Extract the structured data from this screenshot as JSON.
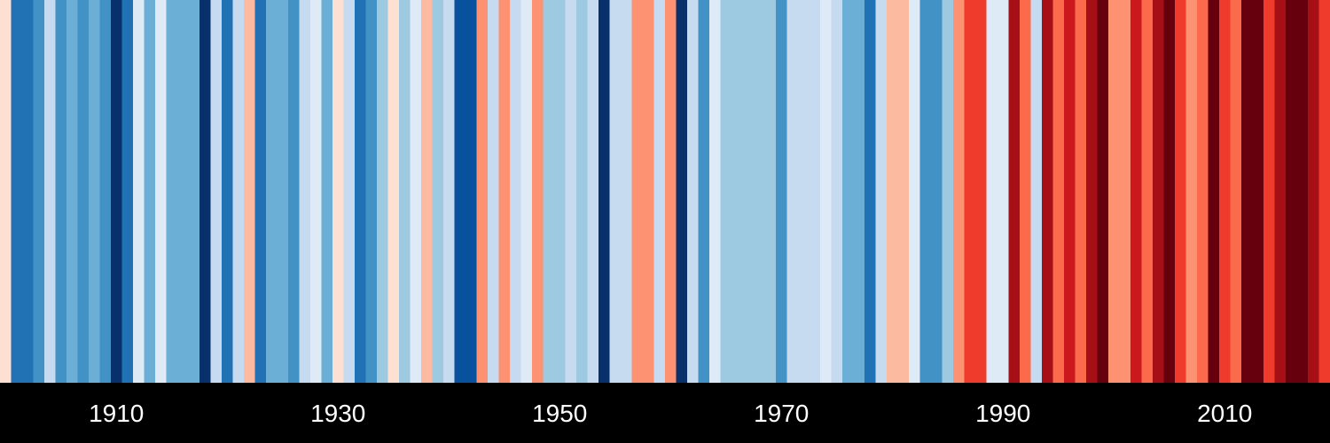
{
  "chart_data": {
    "type": "heatmap",
    "title": "",
    "xlabel": "",
    "ylabel": "",
    "x_tick_labels": [
      "1910",
      "1930",
      "1950",
      "1970",
      "1990",
      "2010"
    ],
    "x_ticks": [
      1910,
      1930,
      1950,
      1970,
      1990,
      2010
    ],
    "xlim": [
      1900,
      2020
    ],
    "grid": false,
    "legend": "none",
    "stripes": [
      {
        "x": 1900,
        "color": "#fee0d2"
      },
      {
        "x": 1901,
        "color": "#2171b5"
      },
      {
        "x": 1902,
        "color": "#2171b5"
      },
      {
        "x": 1903,
        "color": "#4292c6"
      },
      {
        "x": 1904,
        "color": "#c6dbef"
      },
      {
        "x": 1905,
        "color": "#4292c6"
      },
      {
        "x": 1906,
        "color": "#6baed6"
      },
      {
        "x": 1907,
        "color": "#4292c6"
      },
      {
        "x": 1908,
        "color": "#6baed6"
      },
      {
        "x": 1909,
        "color": "#4292c6"
      },
      {
        "x": 1910,
        "color": "#08306b"
      },
      {
        "x": 1911,
        "color": "#2171b5"
      },
      {
        "x": 1912,
        "color": "#deebf7"
      },
      {
        "x": 1913,
        "color": "#6baed6"
      },
      {
        "x": 1914,
        "color": "#deebf7"
      },
      {
        "x": 1915,
        "color": "#6baed6"
      },
      {
        "x": 1916,
        "color": "#6baed6"
      },
      {
        "x": 1917,
        "color": "#6baed6"
      },
      {
        "x": 1918,
        "color": "#08306b"
      },
      {
        "x": 1919,
        "color": "#c6dbef"
      },
      {
        "x": 1920,
        "color": "#2171b5"
      },
      {
        "x": 1921,
        "color": "#c6dbef"
      },
      {
        "x": 1922,
        "color": "#fcbba1"
      },
      {
        "x": 1923,
        "color": "#2171b5"
      },
      {
        "x": 1924,
        "color": "#6baed6"
      },
      {
        "x": 1925,
        "color": "#6baed6"
      },
      {
        "x": 1926,
        "color": "#4292c6"
      },
      {
        "x": 1927,
        "color": "#c6dbef"
      },
      {
        "x": 1928,
        "color": "#deebf7"
      },
      {
        "x": 1929,
        "color": "#6baed6"
      },
      {
        "x": 1930,
        "color": "#fee0d2"
      },
      {
        "x": 1931,
        "color": "#c6dbef"
      },
      {
        "x": 1932,
        "color": "#2171b5"
      },
      {
        "x": 1933,
        "color": "#4292c6"
      },
      {
        "x": 1934,
        "color": "#9ecae1"
      },
      {
        "x": 1935,
        "color": "#fee0d2"
      },
      {
        "x": 1936,
        "color": "#9ecae1"
      },
      {
        "x": 1937,
        "color": "#deebf7"
      },
      {
        "x": 1938,
        "color": "#fcbba1"
      },
      {
        "x": 1939,
        "color": "#9ecae1"
      },
      {
        "x": 1940,
        "color": "#c6dbef"
      },
      {
        "x": 1941,
        "color": "#08519c"
      },
      {
        "x": 1942,
        "color": "#08519c"
      },
      {
        "x": 1943,
        "color": "#fc9272"
      },
      {
        "x": 1944,
        "color": "#c6dbef"
      },
      {
        "x": 1945,
        "color": "#fc9272"
      },
      {
        "x": 1946,
        "color": "#c6dbef"
      },
      {
        "x": 1947,
        "color": "#deebf7"
      },
      {
        "x": 1948,
        "color": "#fc9272"
      },
      {
        "x": 1949,
        "color": "#9ecae1"
      },
      {
        "x": 1950,
        "color": "#9ecae1"
      },
      {
        "x": 1951,
        "color": "#c6dbef"
      },
      {
        "x": 1952,
        "color": "#9ecae1"
      },
      {
        "x": 1953,
        "color": "#c6dbef"
      },
      {
        "x": 1954,
        "color": "#08306b"
      },
      {
        "x": 1955,
        "color": "#c6dbef"
      },
      {
        "x": 1956,
        "color": "#c6dbef"
      },
      {
        "x": 1957,
        "color": "#fc9272"
      },
      {
        "x": 1958,
        "color": "#fc9272"
      },
      {
        "x": 1959,
        "color": "#c6dbef"
      },
      {
        "x": 1960,
        "color": "#fc9272"
      },
      {
        "x": 1961,
        "color": "#08306b"
      },
      {
        "x": 1962,
        "color": "#c6dbef"
      },
      {
        "x": 1963,
        "color": "#4292c6"
      },
      {
        "x": 1964,
        "color": "#deebf7"
      },
      {
        "x": 1965,
        "color": "#9ecae1"
      },
      {
        "x": 1966,
        "color": "#9ecae1"
      },
      {
        "x": 1967,
        "color": "#9ecae1"
      },
      {
        "x": 1968,
        "color": "#9ecae1"
      },
      {
        "x": 1969,
        "color": "#9ecae1"
      },
      {
        "x": 1970,
        "color": "#4292c6"
      },
      {
        "x": 1971,
        "color": "#c6dbef"
      },
      {
        "x": 1972,
        "color": "#c6dbef"
      },
      {
        "x": 1973,
        "color": "#c6dbef"
      },
      {
        "x": 1974,
        "color": "#deebf7"
      },
      {
        "x": 1975,
        "color": "#c6dbef"
      },
      {
        "x": 1976,
        "color": "#6baed6"
      },
      {
        "x": 1977,
        "color": "#6baed6"
      },
      {
        "x": 1978,
        "color": "#2171b5"
      },
      {
        "x": 1979,
        "color": "#c6dbef"
      },
      {
        "x": 1980,
        "color": "#fcbba1"
      },
      {
        "x": 1981,
        "color": "#fcbba1"
      },
      {
        "x": 1982,
        "color": "#deebf7"
      },
      {
        "x": 1983,
        "color": "#4292c6"
      },
      {
        "x": 1984,
        "color": "#4292c6"
      },
      {
        "x": 1985,
        "color": "#9ecae1"
      },
      {
        "x": 1986,
        "color": "#fc9272"
      },
      {
        "x": 1987,
        "color": "#ef3b2c"
      },
      {
        "x": 1988,
        "color": "#ef3b2c"
      },
      {
        "x": 1989,
        "color": "#deebf7"
      },
      {
        "x": 1990,
        "color": "#deebf7"
      },
      {
        "x": 1991,
        "color": "#a50f15"
      },
      {
        "x": 1992,
        "color": "#fb6a4a"
      },
      {
        "x": 1993,
        "color": "#c6dbef"
      },
      {
        "x": 1994,
        "color": "#a50f15"
      },
      {
        "x": 1995,
        "color": "#fb6a4a"
      },
      {
        "x": 1996,
        "color": "#cb181d"
      },
      {
        "x": 1997,
        "color": "#fb6a4a"
      },
      {
        "x": 1998,
        "color": "#a50f15"
      },
      {
        "x": 1999,
        "color": "#67000d"
      },
      {
        "x": 2000,
        "color": "#fc9272"
      },
      {
        "x": 2001,
        "color": "#fc9272"
      },
      {
        "x": 2002,
        "color": "#cb181d"
      },
      {
        "x": 2003,
        "color": "#fb6a4a"
      },
      {
        "x": 2004,
        "color": "#a50f15"
      },
      {
        "x": 2005,
        "color": "#67000d"
      },
      {
        "x": 2006,
        "color": "#ef3b2c"
      },
      {
        "x": 2007,
        "color": "#fc9272"
      },
      {
        "x": 2008,
        "color": "#fb6a4a"
      },
      {
        "x": 2009,
        "color": "#67000d"
      },
      {
        "x": 2010,
        "color": "#ef3b2c"
      },
      {
        "x": 2011,
        "color": "#fb6a4a"
      },
      {
        "x": 2012,
        "color": "#67000d"
      },
      {
        "x": 2013,
        "color": "#67000d"
      },
      {
        "x": 2014,
        "color": "#ef3b2c"
      },
      {
        "x": 2015,
        "color": "#a50f15"
      },
      {
        "x": 2016,
        "color": "#67000d"
      },
      {
        "x": 2017,
        "color": "#67000d"
      },
      {
        "x": 2018,
        "color": "#a50f15"
      },
      {
        "x": 2019,
        "color": "#ef3b2c"
      }
    ]
  }
}
